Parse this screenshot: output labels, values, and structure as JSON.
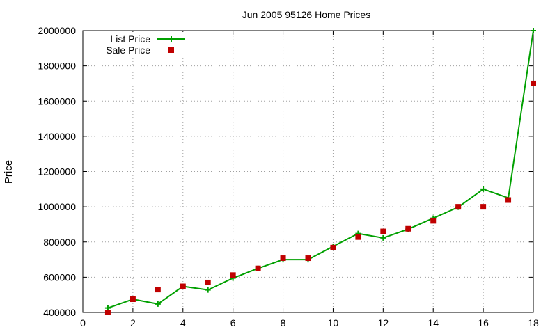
{
  "chart_data": {
    "type": "line",
    "title": "Jun 2005 95126 Home Prices",
    "xlabel": "",
    "ylabel": "Price",
    "xlim": [
      0,
      18
    ],
    "ylim": [
      400000,
      2000000
    ],
    "xticks": [
      0,
      2,
      4,
      6,
      8,
      10,
      12,
      14,
      16,
      18
    ],
    "yticks": [
      400000,
      600000,
      800000,
      1000000,
      1200000,
      1400000,
      1600000,
      1800000,
      2000000
    ],
    "xtick_labels": [
      "0",
      "2",
      "4",
      "6",
      "8",
      "10",
      "12",
      "14",
      "16",
      "18"
    ],
    "ytick_labels": [
      "400000",
      "600000",
      "800000",
      "1000000",
      "1200000",
      "1400000",
      "1600000",
      "1800000",
      "2000000"
    ],
    "grid": true,
    "legend_position": "top-left",
    "x": [
      1,
      2,
      3,
      4,
      5,
      6,
      7,
      8,
      9,
      10,
      11,
      12,
      13,
      14,
      15,
      16,
      17,
      18
    ],
    "series": [
      {
        "name": "List Price",
        "style": "line with plus markers",
        "color": "#00a000",
        "values": [
          425000,
          475000,
          448000,
          548000,
          528000,
          595000,
          650000,
          700000,
          700000,
          775000,
          848000,
          823000,
          873000,
          935000,
          998000,
          1100000,
          1050000,
          2000000
        ]
      },
      {
        "name": "Sale Price",
        "style": "square markers",
        "color": "#c00000",
        "values": [
          400000,
          475000,
          530000,
          548000,
          570000,
          612000,
          650000,
          708000,
          708000,
          768000,
          828000,
          860000,
          875000,
          920000,
          1000000,
          1000000,
          1038000,
          1700000
        ]
      }
    ]
  }
}
